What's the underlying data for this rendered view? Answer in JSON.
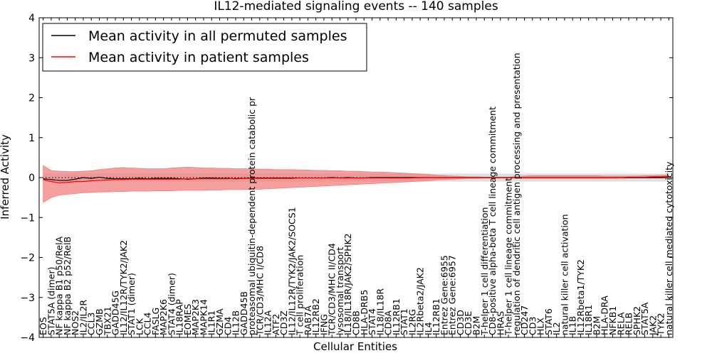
{
  "chart_data": {
    "type": "line",
    "title": "IL12-mediated signaling events -- 140 samples",
    "xlabel": "Cellular Entities",
    "ylabel": "Inferred Activity",
    "ylim": [
      -4,
      4
    ],
    "yticks": [
      "-4",
      "-3",
      "-2",
      "-1",
      "0",
      "1",
      "2",
      "3",
      "4"
    ],
    "legend": {
      "position": "top-left",
      "entries": [
        {
          "label": "Mean activity in all permuted samples",
          "color": "#000000"
        },
        {
          "label": "Mean activity in patient samples",
          "color": "#ff0000"
        }
      ]
    },
    "colors": {
      "patient_line": "#ff0000",
      "patient_band": "#f08080",
      "permuted_line": "#000000",
      "permuted_band": "#d3d3d3"
    },
    "categories": [
      "EOS",
      "STAT5A (dimer)",
      "NF kappa B1 p50/RelA",
      "NF kappa B2 p52/RelB",
      "NOS2",
      "IL2/IL2R",
      "CCL3",
      "GZMB",
      "TBX21",
      "GADD45G",
      "IL12/IL12R/TYK2/JAK2",
      "STAT1 (dimer)",
      "LCK",
      "CCL4",
      "FASLG",
      "MAP2K6",
      "STAT4 (dimer)",
      "IL18RAP",
      "EOMES",
      "MAP2K3",
      "MAPK14",
      "IL1R1",
      "GZMA",
      "CD4",
      "IL12B",
      "GADD45B",
      "proteasomal ubiquitin-dependent protein catabolic pr",
      "TCR/CD3/MHC I/CD8",
      "IL12A",
      "ATF2",
      "CD3Z",
      "IL12/IL12R/TYK2/JAK2/SOCS1",
      "T cell proliferation",
      "RAB7A",
      "IL12RB2",
      "IFNG",
      "TCR/CD3/MHC II/CD4",
      "lysosomal transport",
      "IL18/IL18R/JAK2/SPHK2",
      "CD8B",
      "HLA-DRB5",
      "STAT4",
      "IL18/IL18R",
      "CD8A",
      "IL12RB1",
      "STAT1",
      "IL2RG",
      "IL2Rbeta2/JAK2",
      "IL4",
      "IL12RB1",
      "Entrez Gene:6955",
      "Entrez Gene:6957",
      "CD3D",
      "CD3E",
      "B2M",
      "T-helper 1 cell differentiation",
      "CD8-positive alpha-beta T cell lineage commitment",
      "HRAS",
      "T-helper 1 cell lineage commitment",
      "regulation of dendritic cell antigen processing and presentation",
      "CD247",
      "CD3",
      "HLX",
      "STAT6",
      "IL2",
      "natural killer cell activation",
      "IL1B",
      "IL12Rbeta1/TYK2",
      "IL18R1",
      "B2M",
      "HLA-DRA",
      "NFKB1",
      "RELA",
      "RELB",
      "SPHK2",
      "STAT5A",
      "JAK2",
      "TYK2",
      "natural killer cell mediated cytotoxicity"
    ],
    "series": [
      {
        "name": "Mean activity in patient samples",
        "values": [
          -0.05,
          -0.1,
          -0.13,
          -0.12,
          -0.1,
          -0.1,
          -0.08,
          -0.07,
          -0.06,
          -0.05,
          -0.05,
          -0.04,
          -0.04,
          -0.04,
          -0.04,
          -0.04,
          -0.04,
          -0.04,
          -0.03,
          -0.03,
          -0.03,
          -0.03,
          -0.03,
          -0.03,
          -0.02,
          -0.02,
          -0.02,
          -0.02,
          -0.02,
          -0.02,
          -0.02,
          -0.02,
          -0.01,
          -0.01,
          -0.01,
          -0.01,
          -0.01,
          -0.01,
          -0.01,
          -0.01,
          -0.01,
          -0.01,
          -0.01,
          -0.01,
          -0.01,
          -0.01,
          -0.01,
          0,
          0,
          0,
          0,
          0,
          0,
          0,
          0,
          0,
          0,
          0,
          0,
          0,
          0,
          0,
          0,
          0,
          0,
          0,
          0,
          0,
          0,
          0,
          0,
          0,
          0,
          0.01,
          0.01,
          0.01,
          0.02,
          0.02,
          0.03
        ],
        "lower": [
          -0.62,
          -0.5,
          -0.44,
          -0.42,
          -0.4,
          -0.38,
          -0.37,
          -0.36,
          -0.36,
          -0.35,
          -0.35,
          -0.34,
          -0.34,
          -0.34,
          -0.33,
          -0.33,
          -0.33,
          -0.32,
          -0.32,
          -0.32,
          -0.32,
          -0.31,
          -0.31,
          -0.3,
          -0.3,
          -0.3,
          -0.29,
          -0.29,
          -0.28,
          -0.27,
          -0.26,
          -0.25,
          -0.24,
          -0.23,
          -0.22,
          -0.21,
          -0.2,
          -0.19,
          -0.18,
          -0.17,
          -0.16,
          -0.15,
          -0.14,
          -0.13,
          -0.12,
          -0.11,
          -0.1,
          -0.09,
          -0.08,
          -0.06,
          -0.05,
          -0.04,
          -0.03,
          -0.02,
          -0.02,
          -0.01,
          -0.01,
          -0.01,
          -0.01,
          -0.02,
          -0.02,
          -0.02,
          -0.02,
          -0.02,
          -0.02,
          -0.02,
          -0.02,
          -0.02,
          -0.02,
          -0.02,
          -0.02,
          -0.02,
          -0.01,
          -0.01,
          -0.01,
          -0.01,
          -0.01,
          -0.01,
          0
        ],
        "upper": [
          0.3,
          0.18,
          0.16,
          0.15,
          0.15,
          0.16,
          0.17,
          0.2,
          0.22,
          0.24,
          0.25,
          0.24,
          0.23,
          0.22,
          0.22,
          0.22,
          0.24,
          0.25,
          0.26,
          0.25,
          0.24,
          0.24,
          0.23,
          0.23,
          0.22,
          0.22,
          0.22,
          0.21,
          0.21,
          0.2,
          0.2,
          0.2,
          0.19,
          0.19,
          0.18,
          0.18,
          0.17,
          0.17,
          0.16,
          0.16,
          0.15,
          0.14,
          0.14,
          0.13,
          0.12,
          0.11,
          0.1,
          0.09,
          0.08,
          0.06,
          0.05,
          0.04,
          0.03,
          0.02,
          0.02,
          0.01,
          0.01,
          0.01,
          0.01,
          0.03,
          0.04,
          0.05,
          0.05,
          0.05,
          0.05,
          0.05,
          0.05,
          0.05,
          0.05,
          0.05,
          0.04,
          0.04,
          0.04,
          0.04,
          0.04,
          0.05,
          0.05,
          0.06,
          0.07
        ]
      },
      {
        "name": "Mean activity in all permuted samples",
        "values": [
          -0.03,
          -0.05,
          -0.07,
          -0.07,
          -0.04,
          0.0,
          -0.02,
          0.01,
          -0.02,
          -0.03,
          -0.03,
          -0.03,
          -0.02,
          -0.03,
          -0.02,
          -0.02,
          -0.02,
          -0.03,
          -0.04,
          -0.03,
          -0.01,
          -0.01,
          -0.02,
          -0.02,
          -0.03,
          -0.02,
          -0.01,
          -0.01,
          -0.01,
          -0.01,
          -0.01,
          -0.01,
          -0.01,
          -0.01,
          -0.01,
          -0.01,
          0,
          -0.01,
          0,
          -0.01,
          -0.01,
          0,
          0,
          0,
          0,
          0,
          0,
          0,
          0,
          0,
          0,
          0,
          0,
          0,
          0,
          0,
          0,
          0,
          0,
          0,
          0,
          0,
          0,
          0,
          0,
          0,
          0,
          0,
          0,
          0,
          0,
          0,
          0,
          0,
          0,
          0,
          0,
          0,
          0
        ],
        "lower": [
          -0.1,
          -0.1,
          -0.1,
          -0.1,
          -0.1,
          -0.1,
          -0.1,
          -0.1,
          -0.1,
          -0.1,
          -0.1,
          -0.1,
          -0.1,
          -0.1,
          -0.1,
          -0.1,
          -0.1,
          -0.1,
          -0.1,
          -0.1,
          -0.1,
          -0.1,
          -0.1,
          -0.1,
          -0.1,
          -0.1,
          -0.1,
          -0.1,
          -0.1,
          -0.1,
          -0.1,
          -0.1,
          -0.1,
          -0.1,
          -0.1,
          -0.1,
          -0.1,
          -0.1,
          -0.1,
          -0.1,
          -0.1,
          -0.1,
          -0.1,
          -0.1,
          -0.1,
          -0.1,
          -0.1,
          -0.1,
          -0.1,
          -0.1,
          -0.1,
          -0.1,
          -0.1,
          -0.1,
          -0.1,
          -0.1,
          -0.1,
          -0.1,
          -0.1,
          -0.1,
          -0.1,
          -0.1,
          -0.1,
          -0.1,
          -0.1,
          -0.1,
          -0.1,
          -0.1,
          -0.1,
          -0.1,
          -0.1,
          -0.1,
          -0.1,
          -0.1,
          -0.1,
          -0.1,
          -0.1,
          -0.1,
          -0.1
        ],
        "upper": [
          0.1,
          0.1,
          0.1,
          0.1,
          0.1,
          0.1,
          0.1,
          0.1,
          0.1,
          0.1,
          0.1,
          0.1,
          0.1,
          0.1,
          0.1,
          0.1,
          0.1,
          0.1,
          0.1,
          0.1,
          0.1,
          0.1,
          0.1,
          0.1,
          0.1,
          0.1,
          0.1,
          0.1,
          0.1,
          0.1,
          0.1,
          0.1,
          0.1,
          0.1,
          0.1,
          0.1,
          0.1,
          0.1,
          0.1,
          0.1,
          0.1,
          0.1,
          0.1,
          0.1,
          0.1,
          0.1,
          0.1,
          0.1,
          0.1,
          0.1,
          0.1,
          0.1,
          0.1,
          0.1,
          0.1,
          0.1,
          0.1,
          0.1,
          0.1,
          0.1,
          0.1,
          0.1,
          0.1,
          0.1,
          0.1,
          0.1,
          0.1,
          0.1,
          0.1,
          0.1,
          0.1,
          0.1,
          0.1,
          0.1,
          0.1,
          0.1,
          0.1,
          0.1,
          0.1
        ]
      }
    ],
    "reference_line": 0
  }
}
